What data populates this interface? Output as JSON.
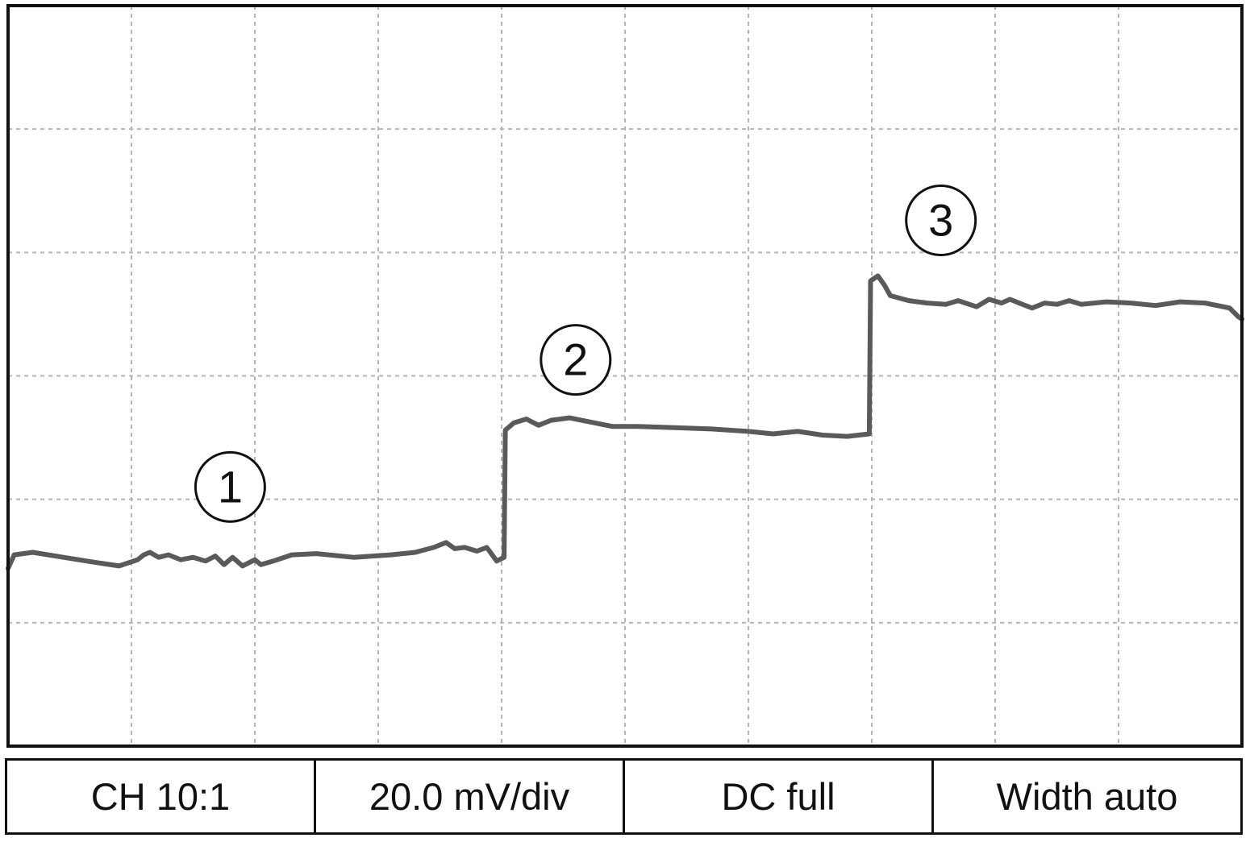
{
  "chart_data": {
    "type": "line",
    "xlabel": "",
    "ylabel": "",
    "grid": true,
    "grid_divisions": {
      "x": 10,
      "y": 6
    },
    "xlim": [
      0,
      10
    ],
    "ylim": [
      0,
      6
    ],
    "series": [
      {
        "color": "#5a5a5a",
        "points": [
          [
            0.0,
            1.44
          ],
          [
            0.05,
            1.55
          ],
          [
            0.2,
            1.57
          ],
          [
            0.45,
            1.53
          ],
          [
            0.7,
            1.49
          ],
          [
            0.9,
            1.46
          ],
          [
            1.05,
            1.51
          ],
          [
            1.1,
            1.55
          ],
          [
            1.15,
            1.57
          ],
          [
            1.22,
            1.53
          ],
          [
            1.3,
            1.55
          ],
          [
            1.4,
            1.51
          ],
          [
            1.5,
            1.53
          ],
          [
            1.6,
            1.5
          ],
          [
            1.68,
            1.54
          ],
          [
            1.75,
            1.47
          ],
          [
            1.82,
            1.53
          ],
          [
            1.9,
            1.46
          ],
          [
            2.0,
            1.51
          ],
          [
            2.05,
            1.47
          ],
          [
            2.15,
            1.5
          ],
          [
            2.3,
            1.55
          ],
          [
            2.5,
            1.56
          ],
          [
            2.8,
            1.53
          ],
          [
            3.1,
            1.55
          ],
          [
            3.3,
            1.57
          ],
          [
            3.45,
            1.61
          ],
          [
            3.55,
            1.65
          ],
          [
            3.62,
            1.6
          ],
          [
            3.7,
            1.61
          ],
          [
            3.8,
            1.58
          ],
          [
            3.88,
            1.61
          ],
          [
            3.96,
            1.5
          ],
          [
            4.02,
            1.53
          ],
          [
            4.03,
            2.56
          ],
          [
            4.1,
            2.62
          ],
          [
            4.2,
            2.65
          ],
          [
            4.3,
            2.6
          ],
          [
            4.4,
            2.64
          ],
          [
            4.55,
            2.66
          ],
          [
            4.7,
            2.63
          ],
          [
            4.9,
            2.59
          ],
          [
            5.1,
            2.59
          ],
          [
            5.4,
            2.58
          ],
          [
            5.7,
            2.57
          ],
          [
            6.0,
            2.55
          ],
          [
            6.2,
            2.53
          ],
          [
            6.4,
            2.55
          ],
          [
            6.6,
            2.52
          ],
          [
            6.8,
            2.51
          ],
          [
            6.98,
            2.53
          ],
          [
            6.99,
            3.77
          ],
          [
            7.05,
            3.81
          ],
          [
            7.1,
            3.74
          ],
          [
            7.15,
            3.65
          ],
          [
            7.3,
            3.61
          ],
          [
            7.45,
            3.59
          ],
          [
            7.6,
            3.58
          ],
          [
            7.7,
            3.61
          ],
          [
            7.85,
            3.56
          ],
          [
            7.95,
            3.62
          ],
          [
            8.05,
            3.59
          ],
          [
            8.12,
            3.62
          ],
          [
            8.22,
            3.58
          ],
          [
            8.3,
            3.55
          ],
          [
            8.4,
            3.59
          ],
          [
            8.5,
            3.58
          ],
          [
            8.6,
            3.61
          ],
          [
            8.7,
            3.58
          ],
          [
            8.9,
            3.6
          ],
          [
            9.1,
            3.59
          ],
          [
            9.3,
            3.57
          ],
          [
            9.5,
            3.6
          ],
          [
            9.7,
            3.59
          ],
          [
            9.9,
            3.55
          ],
          [
            9.97,
            3.48
          ],
          [
            10.0,
            3.46
          ]
        ]
      }
    ],
    "annotations": [
      {
        "text": "1",
        "x": 1.8,
        "y": 2.1
      },
      {
        "text": "2",
        "x": 4.6,
        "y": 3.13
      },
      {
        "text": "3",
        "x": 7.56,
        "y": 4.26
      }
    ]
  },
  "status_bar": {
    "channel": "CH 10:1",
    "scale": "20.0 mV/div",
    "coupling": "DC full",
    "width": "Width auto"
  }
}
